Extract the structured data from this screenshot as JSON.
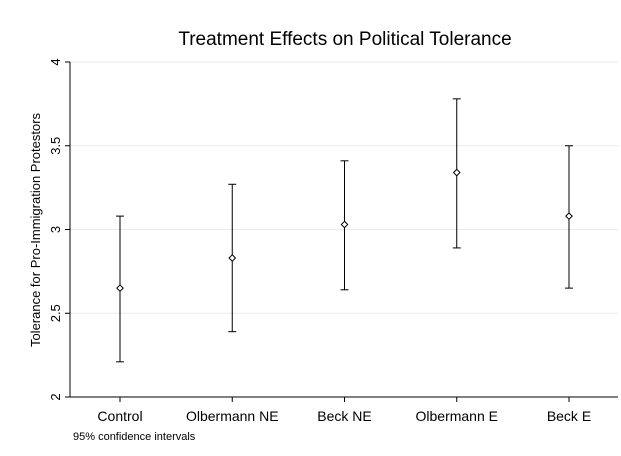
{
  "chart_data": {
    "type": "scatter",
    "title": "Treatment Effects on Political Tolerance",
    "xlabel": "",
    "ylabel": "Tolerance for Pro-Immigration Protestors",
    "categories": [
      "Control",
      "Olbermann NE",
      "Beck NE",
      "Olbermann E",
      "Beck E"
    ],
    "values": [
      2.65,
      2.83,
      3.03,
      3.34,
      3.08
    ],
    "ci_lower": [
      2.21,
      2.39,
      2.64,
      2.89,
      2.65
    ],
    "ci_upper": [
      3.08,
      3.27,
      3.41,
      3.78,
      3.5
    ],
    "ylim": [
      2,
      4
    ],
    "yticks": [
      2,
      2.5,
      3,
      3.5,
      4
    ],
    "ytick_labels": [
      "2",
      "2.5",
      "3",
      "3.5",
      "4"
    ],
    "note": "95% confidence intervals",
    "grid": true,
    "marker": "diamond",
    "colors": {
      "grid": "#eaeaea",
      "ink": "#000000"
    }
  }
}
